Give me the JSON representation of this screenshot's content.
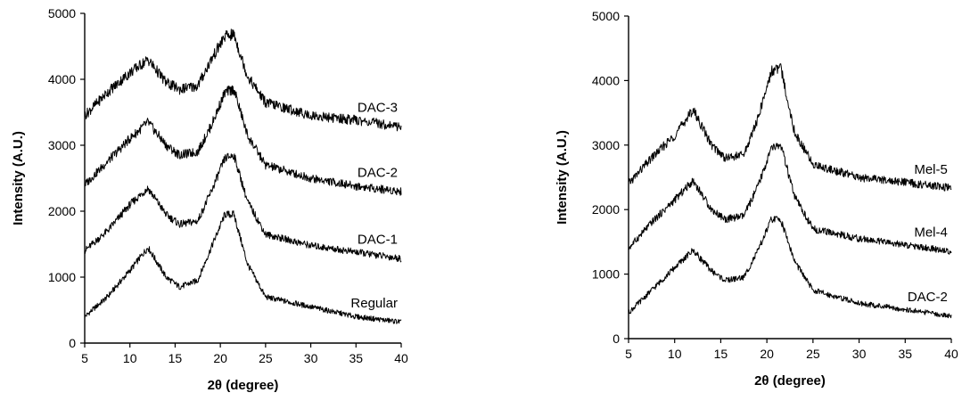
{
  "chart_data": [
    {
      "type": "line",
      "title": "",
      "xlabel": "2θ (degree)",
      "ylabel": "Intensity (A.U.)",
      "xlim": [
        5,
        40
      ],
      "ylim": [
        0,
        5000
      ],
      "xticks": [
        "5",
        "10",
        "15",
        "20",
        "25",
        "30",
        "35",
        "40"
      ],
      "yticks": [
        "0",
        "1000",
        "2000",
        "3000",
        "4000",
        "5000"
      ],
      "grid": false,
      "legend": "none",
      "x": [
        5,
        7.5,
        10,
        12,
        14,
        15.5,
        17.5,
        19,
        20.5,
        21.5,
        23,
        25,
        30,
        35,
        40
      ],
      "series": [
        {
          "name": "Regular",
          "values": [
            400,
            700,
            1100,
            1450,
            1000,
            850,
            950,
            1450,
            1950,
            1950,
            1200,
            700,
            550,
            400,
            320
          ]
        },
        {
          "name": "DAC-1",
          "values": [
            1400,
            1700,
            2100,
            2350,
            1950,
            1800,
            1850,
            2300,
            2800,
            2850,
            2150,
            1650,
            1480,
            1380,
            1280
          ]
        },
        {
          "name": "DAC-2",
          "values": [
            2400,
            2750,
            3100,
            3350,
            3000,
            2850,
            2900,
            3300,
            3800,
            3850,
            3150,
            2700,
            2500,
            2380,
            2300
          ]
        },
        {
          "name": "DAC-3",
          "values": [
            3450,
            3800,
            4100,
            4300,
            3950,
            3850,
            3900,
            4300,
            4650,
            4680,
            4050,
            3650,
            3450,
            3380,
            3280
          ]
        }
      ]
    },
    {
      "type": "line",
      "title": "",
      "xlabel": "2θ (degree)",
      "ylabel": "Intensity (A.U.)",
      "xlim": [
        5,
        40
      ],
      "ylim": [
        0,
        5000
      ],
      "xticks": [
        "5",
        "10",
        "15",
        "20",
        "25",
        "30",
        "35",
        "40"
      ],
      "yticks": [
        "0",
        "1000",
        "2000",
        "3000",
        "4000",
        "5000"
      ],
      "grid": false,
      "legend": "none",
      "x": [
        5,
        7.5,
        10,
        12,
        14,
        15.5,
        17.5,
        19,
        20.5,
        21.5,
        23,
        25,
        30,
        35,
        40
      ],
      "series": [
        {
          "name": "DAC-2",
          "values": [
            400,
            750,
            1100,
            1370,
            1050,
            900,
            950,
            1350,
            1850,
            1850,
            1200,
            750,
            550,
            450,
            350
          ]
        },
        {
          "name": "Mel-4",
          "values": [
            1400,
            1800,
            2150,
            2450,
            2000,
            1850,
            1900,
            2350,
            2950,
            3000,
            2200,
            1700,
            1550,
            1450,
            1350
          ]
        },
        {
          "name": "Mel-5",
          "values": [
            2400,
            2800,
            3150,
            3550,
            3000,
            2800,
            2850,
            3400,
            4150,
            4200,
            3200,
            2700,
            2500,
            2420,
            2330
          ]
        }
      ]
    }
  ]
}
